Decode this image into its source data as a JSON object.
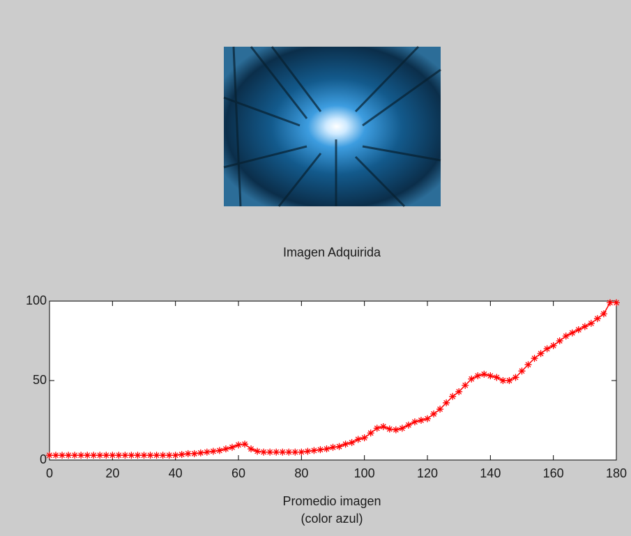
{
  "image_caption": "Imagen Adquirida",
  "chart_data": {
    "type": "line",
    "xlabel": [
      "Promedio imagen",
      "(color azul)"
    ],
    "x": [
      0,
      2,
      4,
      6,
      8,
      10,
      12,
      14,
      16,
      18,
      20,
      22,
      24,
      26,
      28,
      30,
      32,
      34,
      36,
      38,
      40,
      42,
      44,
      46,
      48,
      50,
      52,
      54,
      56,
      58,
      60,
      62,
      64,
      66,
      68,
      70,
      72,
      74,
      76,
      78,
      80,
      82,
      84,
      86,
      88,
      90,
      92,
      94,
      96,
      98,
      100,
      102,
      104,
      106,
      108,
      110,
      112,
      114,
      116,
      118,
      120,
      122,
      124,
      126,
      128,
      130,
      132,
      134,
      136,
      138,
      140,
      142,
      144,
      146,
      148,
      150,
      152,
      154,
      156,
      158,
      160,
      162,
      164,
      166,
      168,
      170,
      172,
      174,
      176,
      178,
      180
    ],
    "series": [
      {
        "color": "#ff0000",
        "marker": "*",
        "values": [
          3,
          3,
          3,
          3,
          3,
          3,
          3,
          3,
          3,
          3,
          3,
          3,
          3,
          3,
          3,
          3,
          3,
          3,
          3,
          3,
          3,
          3.5,
          4,
          4,
          4.5,
          5,
          5.5,
          6,
          7,
          8,
          9.5,
          10,
          7,
          5.5,
          5,
          5,
          5,
          5,
          5,
          5,
          5,
          5.5,
          6,
          6.5,
          7,
          8,
          8.5,
          10,
          11,
          13,
          14,
          17,
          20,
          21,
          19.5,
          19,
          20,
          22,
          24,
          25,
          26,
          29,
          32,
          36,
          40,
          43,
          47,
          51,
          53,
          54,
          53,
          52,
          50,
          50,
          52,
          56,
          60,
          64,
          67,
          70,
          72,
          75,
          78,
          80,
          82,
          84,
          86,
          89,
          92,
          99,
          99
        ]
      }
    ],
    "xlim": [
      0,
      180
    ],
    "xticks": [
      0,
      20,
      40,
      60,
      80,
      100,
      120,
      140,
      160,
      180
    ],
    "ylim": [
      0,
      100
    ],
    "yticks": [
      0,
      50,
      100
    ]
  }
}
